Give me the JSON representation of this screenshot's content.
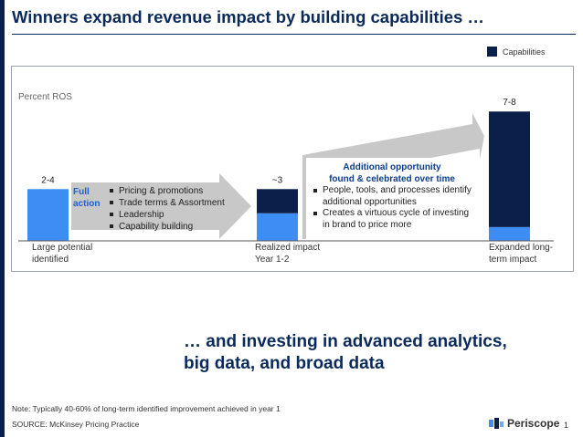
{
  "title": "Winners expand revenue impact by building capabilities …",
  "legend": {
    "label": "Capabilities",
    "color": "#0b1f4b"
  },
  "colors": {
    "base": "#3d8df5",
    "capabilities": "#0b1f4b",
    "arrow": "#c8c8c8"
  },
  "chart_data": {
    "type": "bar",
    "units_label": "Percent ROS",
    "categories": [
      "Large potential\nidentified",
      "Realized impact\nYear 1-2",
      "Expanded long-\nterm impact"
    ],
    "data_labels": [
      "2-4",
      "~3",
      "7-8"
    ],
    "series": [
      {
        "name": "",
        "values": [
          3,
          1.6,
          0.8
        ]
      },
      {
        "name": "Capabilities",
        "values": [
          0,
          1.4,
          6.7
        ]
      }
    ],
    "ylim": [
      0,
      8.2
    ]
  },
  "full_action": {
    "label": "Full\naction",
    "items": [
      "Pricing & promotions",
      "Trade terms & Assortment",
      "Leadership",
      "Capability building"
    ]
  },
  "bubble": {
    "title": "Additional opportunity\nfound & celebrated over time",
    "items": [
      "People, tools, and processes identify additional opportunities",
      "Creates a virtuous cycle of investing in brand to price more"
    ]
  },
  "subtitle": "… and investing in advanced analytics,\nbig data, and broad data",
  "note": "Note: Typically 40-60% of long-term identified improvement achieved in year 1",
  "source": "SOURCE: McKinsey Pricing Practice",
  "logo_text": "Periscope",
  "page_number": "1"
}
